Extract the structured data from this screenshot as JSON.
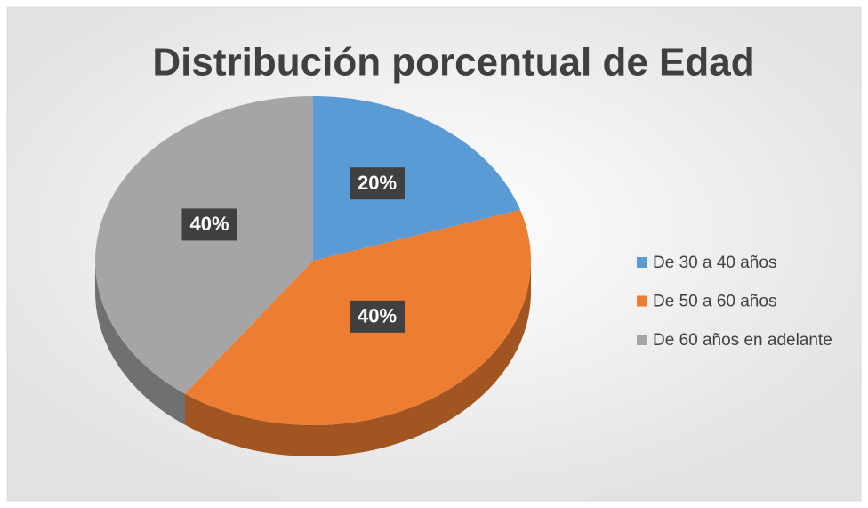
{
  "chart_data": {
    "type": "pie",
    "title": "Distribución porcentual de Edad",
    "categories": [
      "De 30 a 40 años",
      "De 50 a 60 años",
      "De 60 años en adelante"
    ],
    "values": [
      20,
      40,
      40
    ],
    "value_labels": [
      "20%",
      "40%",
      "40%"
    ],
    "colors": [
      "#5b9bd5",
      "#ed7d31",
      "#a5a5a5"
    ],
    "legend": "right"
  }
}
